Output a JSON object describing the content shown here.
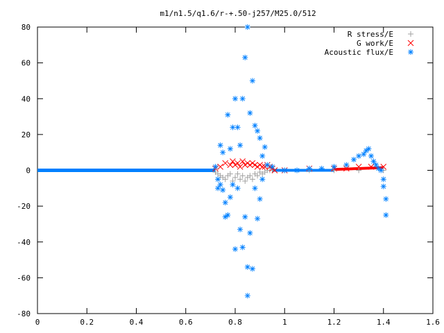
{
  "chart_data": {
    "type": "scatter",
    "title": "m1/n1.5/q1.6/r-+.50-j257/M25.0/512",
    "xlabel": "",
    "ylabel": "",
    "xlim": [
      0,
      1.6
    ],
    "ylim": [
      -80,
      80
    ],
    "xticks": [
      "0",
      "0.2",
      "0.4",
      "0.6",
      "0.8",
      "1",
      "1.2",
      "1.4",
      "1.6"
    ],
    "yticks": [
      "-80",
      "-60",
      "-40",
      "-20",
      "0",
      "20",
      "40",
      "60",
      "80"
    ],
    "grid": false,
    "legend_position": "top-right",
    "series": [
      {
        "name": "R stress/E",
        "marker": "plus",
        "color": "#a0a0a0",
        "x": [
          0.72,
          0.73,
          0.74,
          0.75,
          0.76,
          0.77,
          0.78,
          0.79,
          0.8,
          0.81,
          0.82,
          0.83,
          0.84,
          0.85,
          0.86,
          0.87,
          0.88,
          0.89,
          0.9,
          0.91,
          0.92,
          0.93,
          0.94,
          0.95,
          1.0,
          1.1,
          1.2,
          1.3,
          1.4
        ],
        "y": [
          -1,
          -2,
          -3,
          -4,
          -5,
          -3,
          -2,
          -6,
          -4,
          -2,
          -5,
          -3,
          -6,
          -4,
          -3,
          -5,
          -2,
          -3,
          -1,
          -2,
          -1,
          0,
          0,
          0,
          0,
          0,
          0,
          0,
          0
        ]
      },
      {
        "name": "G work/E",
        "marker": "cross",
        "color": "#ff0000",
        "x": [
          0.72,
          0.74,
          0.76,
          0.78,
          0.79,
          0.8,
          0.81,
          0.82,
          0.83,
          0.84,
          0.85,
          0.86,
          0.87,
          0.88,
          0.89,
          0.9,
          0.91,
          0.92,
          0.93,
          0.94,
          0.95,
          0.96,
          1.0,
          1.1,
          1.2,
          1.25,
          1.3,
          1.35,
          1.4
        ],
        "y": [
          1,
          2,
          4,
          3,
          5,
          3,
          4,
          2,
          5,
          3,
          4,
          3,
          4,
          3,
          2,
          3,
          2,
          2,
          3,
          2,
          1,
          0,
          0,
          1,
          1,
          1,
          2,
          2,
          2
        ]
      },
      {
        "name": "Acoustic flux/E",
        "marker": "star",
        "color": "#0080ff",
        "x": [
          0.72,
          0.73,
          0.73,
          0.74,
          0.74,
          0.75,
          0.75,
          0.76,
          0.76,
          0.77,
          0.77,
          0.78,
          0.78,
          0.79,
          0.79,
          0.8,
          0.8,
          0.81,
          0.81,
          0.82,
          0.82,
          0.83,
          0.83,
          0.84,
          0.84,
          0.85,
          0.85,
          0.85,
          0.86,
          0.86,
          0.87,
          0.87,
          0.88,
          0.88,
          0.89,
          0.89,
          0.9,
          0.9,
          0.91,
          0.91,
          0.92,
          0.93,
          0.95,
          1.0,
          1.05,
          1.1,
          1.15,
          1.2,
          1.25,
          1.28,
          1.3,
          1.32,
          1.33,
          1.34,
          1.35,
          1.36,
          1.37,
          1.38,
          1.39,
          1.4,
          1.4,
          1.41,
          1.41
        ],
        "y": [
          2,
          -5,
          -10,
          -8,
          14,
          -11,
          10,
          -26,
          -18,
          31,
          -25,
          12,
          -15,
          -8,
          24,
          40,
          -44,
          24,
          -10,
          14,
          -33,
          40,
          -43,
          63,
          -26,
          80,
          -54,
          -70,
          32,
          -35,
          50,
          -55,
          25,
          -10,
          22,
          -27,
          -16,
          18,
          8,
          -5,
          13,
          3,
          2,
          0,
          0,
          1,
          1,
          2,
          3,
          6,
          8,
          9,
          11,
          12,
          8,
          5,
          3,
          1,
          0,
          -5,
          -9,
          -16,
          -25
        ]
      }
    ]
  }
}
